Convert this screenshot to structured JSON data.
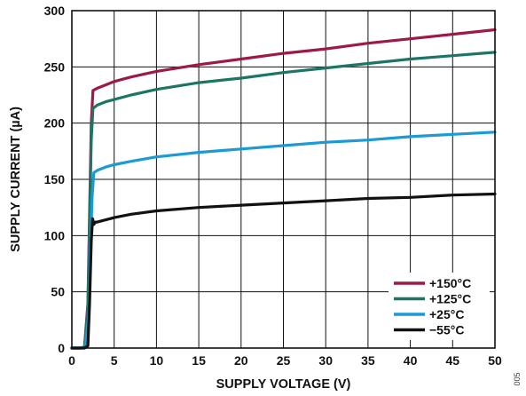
{
  "chart_data": {
    "type": "line",
    "title": "",
    "xlabel": "SUPPLY VOLTAGE (V)",
    "ylabel": "SUPPLY CURRENT (µA)",
    "xlim": [
      0,
      50
    ],
    "ylim": [
      0,
      300
    ],
    "x_ticks": [
      0,
      5,
      10,
      15,
      20,
      25,
      30,
      35,
      40,
      45,
      50
    ],
    "y_ticks": [
      0,
      50,
      100,
      150,
      200,
      250,
      300
    ],
    "grid": true,
    "legend_position": "bottom-right",
    "figure_id": "005",
    "series": [
      {
        "name": "+150°C",
        "color": "#9c1a45",
        "x": [
          0,
          1,
          1.5,
          1.9,
          2.1,
          2.3,
          2.5,
          3,
          4,
          5,
          7,
          10,
          15,
          20,
          25,
          30,
          35,
          40,
          45,
          50
        ],
        "y": [
          0,
          0,
          1,
          40,
          120,
          200,
          229,
          231,
          234,
          237,
          241,
          246,
          252,
          257,
          262,
          266,
          271,
          275,
          279,
          283
        ]
      },
      {
        "name": "+125°C",
        "color": "#1d7565",
        "x": [
          0,
          1,
          1.5,
          1.9,
          2.1,
          2.3,
          2.5,
          3,
          4,
          5,
          7,
          10,
          15,
          20,
          25,
          30,
          35,
          40,
          45,
          50
        ],
        "y": [
          0,
          0,
          1,
          35,
          110,
          185,
          213,
          216,
          219,
          221,
          225,
          230,
          236,
          240,
          245,
          249,
          253,
          257,
          260,
          263
        ]
      },
      {
        "name": "+25°C",
        "color": "#1b9ad6",
        "x": [
          0,
          1,
          1.6,
          2,
          2.2,
          2.4,
          2.6,
          3,
          4,
          5,
          7,
          10,
          15,
          20,
          25,
          30,
          35,
          40,
          45,
          50
        ],
        "y": [
          0,
          0,
          1,
          30,
          90,
          135,
          156,
          158,
          161,
          163,
          166,
          170,
          174,
          177,
          180,
          183,
          185,
          188,
          190,
          192
        ]
      },
      {
        "name": "−55°C",
        "color": "#111111",
        "x": [
          0,
          1.5,
          1.9,
          2.1,
          2.3,
          2.45,
          2.6,
          2.8,
          3,
          4,
          5,
          7,
          10,
          15,
          20,
          25,
          30,
          35,
          40,
          45,
          50
        ],
        "y": [
          0,
          0,
          2,
          40,
          95,
          115,
          110,
          112,
          112,
          114,
          116,
          119,
          122,
          125,
          127,
          129,
          131,
          133,
          134,
          136,
          137
        ]
      }
    ]
  }
}
